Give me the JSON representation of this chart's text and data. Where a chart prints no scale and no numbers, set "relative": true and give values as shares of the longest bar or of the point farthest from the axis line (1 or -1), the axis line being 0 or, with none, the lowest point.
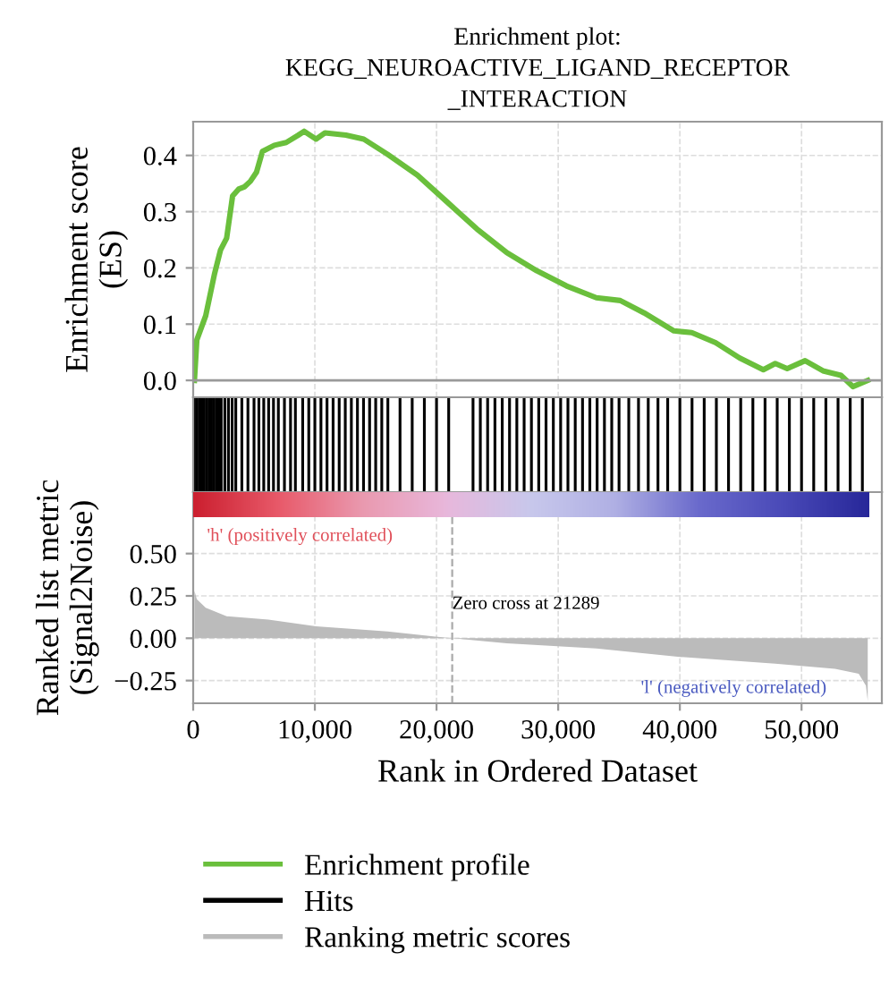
{
  "chart_data": [
    {
      "type": "line",
      "title": "Enrichment plot:\nKEGG_NEUROACTIVE_LIGAND_RECEPTOR\n_INTERACTION",
      "ylabel": "Enrichment score\n(ES)",
      "xlim": [
        0,
        56600
      ],
      "ylim": [
        -0.03,
        0.46
      ],
      "yticks": [
        {
          "value": 0,
          "label": "0.0"
        },
        0.1,
        0.2,
        0.3,
        0.4
      ],
      "tick_labels": "y",
      "grid": true,
      "legend": "bottom",
      "ref_lines": [
        {
          "axis": "y",
          "value": 0,
          "color": "#999999"
        }
      ],
      "series": [
        {
          "name": "Enrichment profile",
          "color": "#6abf3c",
          "x": [
            100,
            300,
            1030,
            1760,
            2250,
            2750,
            3240,
            3730,
            4200,
            4700,
            5200,
            5690,
            6670,
            7650,
            8630,
            9120,
            10100,
            10830,
            12550,
            14020,
            15980,
            18430,
            20880,
            23330,
            25780,
            28230,
            30680,
            33130,
            35100,
            37060,
            39510,
            40980,
            42940,
            44900,
            46860,
            47840,
            48820,
            50290,
            51760,
            53240,
            54220,
            55440
          ],
          "values": [
            0.0,
            0.072,
            0.115,
            0.19,
            0.232,
            0.253,
            0.328,
            0.34,
            0.344,
            0.354,
            0.37,
            0.407,
            0.418,
            0.423,
            0.436,
            0.443,
            0.429,
            0.44,
            0.436,
            0.429,
            0.402,
            0.365,
            0.317,
            0.269,
            0.227,
            0.195,
            0.168,
            0.147,
            0.142,
            0.12,
            0.088,
            0.085,
            0.067,
            0.04,
            0.019,
            0.03,
            0.021,
            0.035,
            0.017,
            0.009,
            -0.011,
            0.0
          ]
        }
      ]
    },
    {
      "type": "bar",
      "relative": true,
      "xlim": [
        0,
        56600
      ],
      "tick_labels": false,
      "legend": "bottom",
      "series": [
        {
          "name": "Hits",
          "color": "#000000",
          "x": [
            100,
            300,
            500,
            700,
            900,
            1100,
            1300,
            1500,
            1700,
            1900,
            2100,
            2300,
            2600,
            2900,
            3200,
            3500,
            4000,
            4500,
            5000,
            5400,
            5800,
            6200,
            6600,
            7000,
            7500,
            8000,
            8400,
            9000,
            9500,
            10000,
            10500,
            11000,
            11500,
            12000,
            12500,
            13000,
            13500,
            14000,
            14500,
            15000,
            15500,
            16000,
            17000,
            18000,
            19000,
            20000,
            21000,
            23000,
            23600,
            24200,
            24800,
            25400,
            26000,
            26600,
            27200,
            27800,
            28400,
            29000,
            29600,
            30200,
            30800,
            31400,
            32000,
            32600,
            33200,
            33800,
            34400,
            35000,
            35800,
            36600,
            37400,
            38200,
            39000,
            40000,
            41000,
            42000,
            43000,
            44000,
            45000,
            46000,
            47000,
            48000,
            49000,
            50000,
            51000,
            52000,
            53000,
            54000,
            55000
          ],
          "values": [
            1,
            1,
            1,
            1,
            1,
            1,
            1,
            1,
            1,
            1,
            1,
            1,
            1,
            1,
            1,
            1,
            1,
            1,
            1,
            1,
            1,
            1,
            1,
            1,
            1,
            1,
            1,
            1,
            1,
            1,
            1,
            1,
            1,
            1,
            1,
            1,
            1,
            1,
            1,
            1,
            1,
            1,
            1,
            1,
            1,
            1,
            1,
            1,
            1,
            1,
            1,
            1,
            1,
            1,
            1,
            1,
            1,
            1,
            1,
            1,
            1,
            1,
            1,
            1,
            1,
            1,
            1,
            1,
            1,
            1,
            1,
            1,
            1,
            1,
            1,
            1,
            1,
            1,
            1,
            1,
            1,
            1,
            1,
            1,
            1,
            1,
            1,
            1,
            1
          ]
        }
      ]
    },
    {
      "type": "area",
      "xlabel": "Rank in Ordered Dataset",
      "ylabel": "Ranked list metric\n(Signal2Noise)",
      "xlim": [
        0,
        56600
      ],
      "ylim": [
        -0.384,
        0.863
      ],
      "xticks": [
        0,
        {
          "value": 10000,
          "label": "10,000"
        },
        {
          "value": 20000,
          "label": "20,000"
        },
        {
          "value": 30000,
          "label": "30,000"
        },
        {
          "value": 40000,
          "label": "40,000"
        },
        {
          "value": 50000,
          "label": "50,000"
        }
      ],
      "yticks": [
        {
          "value": -0.25,
          "label": "−0.25"
        },
        {
          "value": 0,
          "label": "0.00"
        },
        {
          "value": 0.25,
          "label": "0.25"
        },
        {
          "value": 0.5,
          "label": "0.50"
        }
      ],
      "grid": true,
      "legend": "bottom",
      "ref_lines": [
        {
          "axis": "x",
          "value": 21289,
          "color": "#aaaaaa",
          "line_style": "dashed"
        }
      ],
      "annotations": [
        "'h' (positively correlated)",
        {
          "text": "Zero cross at 21289",
          "x": 21289,
          "y": 0.2
        },
        "'l' (negatively correlated)"
      ],
      "series": [
        {
          "name": "Ranking metric scores",
          "color": "#bbbbbb",
          "x": [
            100,
            300,
            1030,
            2750,
            6180,
            10100,
            15980,
            19900,
            21289,
            25780,
            33130,
            40000,
            47840,
            52750,
            54700,
            55290,
            55440
          ],
          "values": [
            0.28,
            0.23,
            0.18,
            0.13,
            0.11,
            0.07,
            0.04,
            0.01,
            0.0,
            -0.03,
            -0.06,
            -0.11,
            -0.15,
            -0.18,
            -0.21,
            -0.28,
            -0.37
          ]
        }
      ]
    }
  ]
}
